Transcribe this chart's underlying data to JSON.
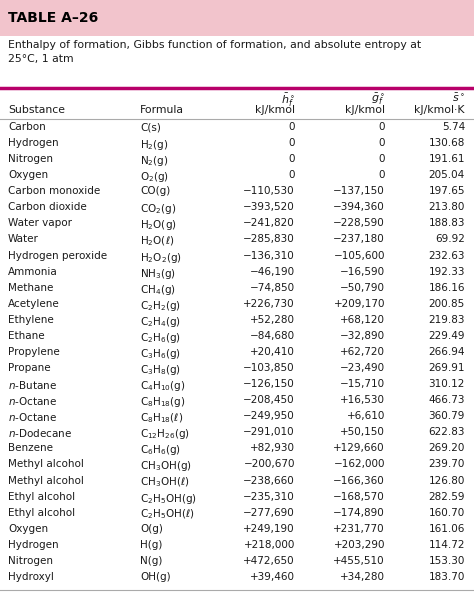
{
  "title": "TABLE A–26",
  "subtitle": "Enthalpy of formation, Gibbs function of formation, and absolute entropy at\n25°C, 1 atm",
  "rows": [
    [
      "Carbon",
      "C(s)",
      "0",
      "0",
      "5.74"
    ],
    [
      "Hydrogen",
      "H$_2$(g)",
      "0",
      "0",
      "130.68"
    ],
    [
      "Nitrogen",
      "N$_2$(g)",
      "0",
      "0",
      "191.61"
    ],
    [
      "Oxygen",
      "O$_2$(g)",
      "0",
      "0",
      "205.04"
    ],
    [
      "Carbon monoxide",
      "CO(g)",
      "−110,530",
      "−137,150",
      "197.65"
    ],
    [
      "Carbon dioxide",
      "CO$_2$(g)",
      "−393,520",
      "−394,360",
      "213.80"
    ],
    [
      "Water vapor",
      "H$_2$O(g)",
      "−241,820",
      "−228,590",
      "188.83"
    ],
    [
      "Water",
      "H$_2$O($\\ell$)",
      "−285,830",
      "−237,180",
      "69.92"
    ],
    [
      "Hydrogen peroxide",
      "H$_2$O$_2$(g)",
      "−136,310",
      "−105,600",
      "232.63"
    ],
    [
      "Ammonia",
      "NH$_3$(g)",
      "−46,190",
      "−16,590",
      "192.33"
    ],
    [
      "Methane",
      "CH$_4$(g)",
      "−74,850",
      "−50,790",
      "186.16"
    ],
    [
      "Acetylene",
      "C$_2$H$_2$(g)",
      "+226,730",
      "+209,170",
      "200.85"
    ],
    [
      "Ethylene",
      "C$_2$H$_4$(g)",
      "+52,280",
      "+68,120",
      "219.83"
    ],
    [
      "Ethane",
      "C$_2$H$_6$(g)",
      "−84,680",
      "−32,890",
      "229.49"
    ],
    [
      "Propylene",
      "C$_3$H$_6$(g)",
      "+20,410",
      "+62,720",
      "266.94"
    ],
    [
      "Propane",
      "C$_3$H$_8$(g)",
      "−103,850",
      "−23,490",
      "269.91"
    ],
    [
      "n-Butane",
      "C$_4$H$_{10}$(g)",
      "−126,150",
      "−15,710",
      "310.12"
    ],
    [
      "n-Octane",
      "C$_8$H$_{18}$(g)",
      "−208,450",
      "+16,530",
      "466.73"
    ],
    [
      "n-Octane",
      "C$_8$H$_{18}$($\\ell$)",
      "−249,950",
      "+6,610",
      "360.79"
    ],
    [
      "n-Dodecane",
      "C$_{12}$H$_{26}$(g)",
      "−291,010",
      "+50,150",
      "622.83"
    ],
    [
      "Benzene",
      "C$_6$H$_6$(g)",
      "+82,930",
      "+129,660",
      "269.20"
    ],
    [
      "Methyl alcohol",
      "CH$_3$OH(g)",
      "−200,670",
      "−162,000",
      "239.70"
    ],
    [
      "Methyl alcohol",
      "CH$_3$OH($\\ell$)",
      "−238,660",
      "−166,360",
      "126.80"
    ],
    [
      "Ethyl alcohol",
      "C$_2$H$_5$OH(g)",
      "−235,310",
      "−168,570",
      "282.59"
    ],
    [
      "Ethyl alcohol",
      "C$_2$H$_5$OH($\\ell$)",
      "−277,690",
      "−174,890",
      "160.70"
    ],
    [
      "Oxygen",
      "O(g)",
      "+249,190",
      "+231,770",
      "161.06"
    ],
    [
      "Hydrogen",
      "H(g)",
      "+218,000",
      "+203,290",
      "114.72"
    ],
    [
      "Nitrogen",
      "N(g)",
      "+472,650",
      "+455,510",
      "153.30"
    ],
    [
      "Hydroxyl",
      "OH(g)",
      "+39,460",
      "+34,280",
      "183.70"
    ]
  ],
  "title_bg": "#f2c4cc",
  "header_line_color": "#b8006a",
  "thin_line_color": "#aaaaaa",
  "text_color": "#1a1a1a",
  "title_color": "#000000"
}
